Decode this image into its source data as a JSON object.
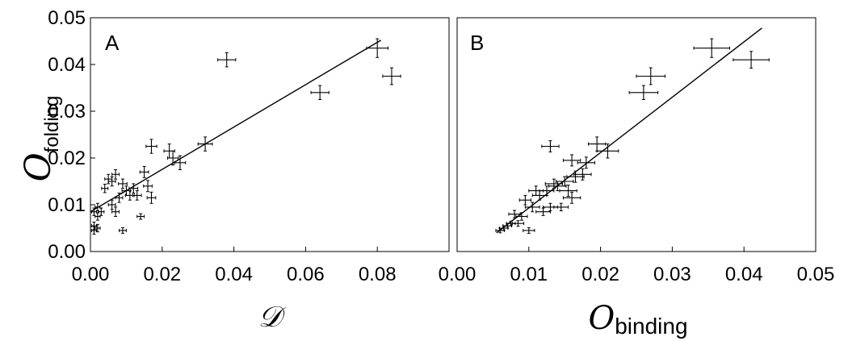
{
  "chart_data": [
    {
      "type": "scatter",
      "panel_label": "A",
      "xlabel": "𝒟",
      "ylabel": {
        "symbol": "O",
        "subscript": "folding"
      },
      "xlim": [
        0,
        0.1
      ],
      "ylim": [
        0,
        0.05
      ],
      "xticks": [
        "0.00",
        "0.02",
        "0.04",
        "0.06",
        "0.08"
      ],
      "yticks": [
        "0.00",
        "0.01",
        "0.02",
        "0.03",
        "0.04",
        "0.05"
      ],
      "fit_line": {
        "x": [
          0.0,
          0.081
        ],
        "y": [
          0.0085,
          0.0452
        ]
      },
      "points": [
        {
          "x": 0.001,
          "y": 0.0045,
          "xerr": 0.0007,
          "yerr": 0.0008
        },
        {
          "x": 0.001,
          "y": 0.0055,
          "xerr": 0.0007,
          "yerr": 0.0008
        },
        {
          "x": 0.002,
          "y": 0.005,
          "xerr": 0.0007,
          "yerr": 0.0008
        },
        {
          "x": 0.002,
          "y": 0.0075,
          "xerr": 0.0007,
          "yerr": 0.0008
        },
        {
          "x": 0.001,
          "y": 0.0085,
          "xerr": 0.0007,
          "yerr": 0.0008
        },
        {
          "x": 0.002,
          "y": 0.0095,
          "xerr": 0.0007,
          "yerr": 0.0008
        },
        {
          "x": 0.003,
          "y": 0.0085,
          "xerr": 0.0008,
          "yerr": 0.0008
        },
        {
          "x": 0.004,
          "y": 0.0135,
          "xerr": 0.0009,
          "yerr": 0.0009
        },
        {
          "x": 0.005,
          "y": 0.0155,
          "xerr": 0.001,
          "yerr": 0.001
        },
        {
          "x": 0.006,
          "y": 0.015,
          "xerr": 0.001,
          "yerr": 0.001
        },
        {
          "x": 0.007,
          "y": 0.0165,
          "xerr": 0.001,
          "yerr": 0.001
        },
        {
          "x": 0.006,
          "y": 0.01,
          "xerr": 0.001,
          "yerr": 0.001
        },
        {
          "x": 0.007,
          "y": 0.0085,
          "xerr": 0.001,
          "yerr": 0.001
        },
        {
          "x": 0.008,
          "y": 0.0115,
          "xerr": 0.001,
          "yerr": 0.001
        },
        {
          "x": 0.009,
          "y": 0.0145,
          "xerr": 0.0012,
          "yerr": 0.001
        },
        {
          "x": 0.01,
          "y": 0.013,
          "xerr": 0.0012,
          "yerr": 0.001
        },
        {
          "x": 0.011,
          "y": 0.012,
          "xerr": 0.0012,
          "yerr": 0.001
        },
        {
          "x": 0.012,
          "y": 0.0135,
          "xerr": 0.0012,
          "yerr": 0.001
        },
        {
          "x": 0.009,
          "y": 0.0045,
          "xerr": 0.001,
          "yerr": 0.0006
        },
        {
          "x": 0.013,
          "y": 0.012,
          "xerr": 0.0012,
          "yerr": 0.001
        },
        {
          "x": 0.014,
          "y": 0.0075,
          "xerr": 0.001,
          "yerr": 0.0006
        },
        {
          "x": 0.015,
          "y": 0.017,
          "xerr": 0.0012,
          "yerr": 0.0012
        },
        {
          "x": 0.016,
          "y": 0.014,
          "xerr": 0.0012,
          "yerr": 0.0012
        },
        {
          "x": 0.017,
          "y": 0.0115,
          "xerr": 0.0012,
          "yerr": 0.0012
        },
        {
          "x": 0.017,
          "y": 0.0225,
          "xerr": 0.0015,
          "yerr": 0.0015
        },
        {
          "x": 0.022,
          "y": 0.0215,
          "xerr": 0.0015,
          "yerr": 0.0015
        },
        {
          "x": 0.023,
          "y": 0.02,
          "xerr": 0.0015,
          "yerr": 0.0015
        },
        {
          "x": 0.025,
          "y": 0.019,
          "xerr": 0.0015,
          "yerr": 0.0015
        },
        {
          "x": 0.032,
          "y": 0.023,
          "xerr": 0.002,
          "yerr": 0.0015
        },
        {
          "x": 0.038,
          "y": 0.041,
          "xerr": 0.0025,
          "yerr": 0.0015
        },
        {
          "x": 0.064,
          "y": 0.034,
          "xerr": 0.0025,
          "yerr": 0.0015
        },
        {
          "x": 0.08,
          "y": 0.0435,
          "xerr": 0.003,
          "yerr": 0.002
        },
        {
          "x": 0.084,
          "y": 0.0375,
          "xerr": 0.0025,
          "yerr": 0.0018
        }
      ]
    },
    {
      "type": "scatter",
      "panel_label": "B",
      "xlabel": {
        "symbol": "O",
        "subscript": "binding"
      },
      "ylabel": "",
      "xlim": [
        0,
        0.05
      ],
      "ylim": [
        0,
        0.05
      ],
      "xticks": [
        "0.00",
        "0.01",
        "0.02",
        "0.03",
        "0.04",
        "0.05"
      ],
      "yticks": [],
      "fit_line": {
        "x": [
          0.0055,
          0.0425
        ],
        "y": [
          0.004,
          0.0478
        ]
      },
      "points": [
        {
          "x": 0.006,
          "y": 0.0045,
          "xerr": 0.0006,
          "yerr": 0.0005
        },
        {
          "x": 0.0065,
          "y": 0.005,
          "xerr": 0.0006,
          "yerr": 0.0005
        },
        {
          "x": 0.007,
          "y": 0.0055,
          "xerr": 0.0006,
          "yerr": 0.0005
        },
        {
          "x": 0.0075,
          "y": 0.006,
          "xerr": 0.0006,
          "yerr": 0.0005
        },
        {
          "x": 0.008,
          "y": 0.008,
          "xerr": 0.0008,
          "yerr": 0.0008
        },
        {
          "x": 0.0085,
          "y": 0.006,
          "xerr": 0.0008,
          "yerr": 0.0006
        },
        {
          "x": 0.009,
          "y": 0.0075,
          "xerr": 0.0008,
          "yerr": 0.0008
        },
        {
          "x": 0.0095,
          "y": 0.011,
          "xerr": 0.0008,
          "yerr": 0.001
        },
        {
          "x": 0.01,
          "y": 0.0045,
          "xerr": 0.0008,
          "yerr": 0.0006
        },
        {
          "x": 0.0105,
          "y": 0.0095,
          "xerr": 0.001,
          "yerr": 0.001
        },
        {
          "x": 0.011,
          "y": 0.013,
          "xerr": 0.001,
          "yerr": 0.001
        },
        {
          "x": 0.0115,
          "y": 0.012,
          "xerr": 0.001,
          "yerr": 0.001
        },
        {
          "x": 0.012,
          "y": 0.0085,
          "xerr": 0.001,
          "yerr": 0.0008
        },
        {
          "x": 0.0125,
          "y": 0.013,
          "xerr": 0.001,
          "yerr": 0.001
        },
        {
          "x": 0.013,
          "y": 0.0095,
          "xerr": 0.001,
          "yerr": 0.0008
        },
        {
          "x": 0.0135,
          "y": 0.0145,
          "xerr": 0.0012,
          "yerr": 0.001
        },
        {
          "x": 0.014,
          "y": 0.014,
          "xerr": 0.0012,
          "yerr": 0.001
        },
        {
          "x": 0.0145,
          "y": 0.0095,
          "xerr": 0.001,
          "yerr": 0.0008
        },
        {
          "x": 0.015,
          "y": 0.015,
          "xerr": 0.0012,
          "yerr": 0.001
        },
        {
          "x": 0.0155,
          "y": 0.013,
          "xerr": 0.0012,
          "yerr": 0.0012
        },
        {
          "x": 0.016,
          "y": 0.0115,
          "xerr": 0.0012,
          "yerr": 0.0012
        },
        {
          "x": 0.013,
          "y": 0.0225,
          "xerr": 0.0012,
          "yerr": 0.0012
        },
        {
          "x": 0.016,
          "y": 0.0195,
          "xerr": 0.0012,
          "yerr": 0.0012
        },
        {
          "x": 0.0165,
          "y": 0.016,
          "xerr": 0.0012,
          "yerr": 0.0012
        },
        {
          "x": 0.0175,
          "y": 0.0165,
          "xerr": 0.0012,
          "yerr": 0.0012
        },
        {
          "x": 0.018,
          "y": 0.019,
          "xerr": 0.0012,
          "yerr": 0.0012
        },
        {
          "x": 0.0195,
          "y": 0.023,
          "xerr": 0.0012,
          "yerr": 0.0015
        },
        {
          "x": 0.021,
          "y": 0.0215,
          "xerr": 0.0015,
          "yerr": 0.0015
        },
        {
          "x": 0.026,
          "y": 0.034,
          "xerr": 0.002,
          "yerr": 0.0015
        },
        {
          "x": 0.027,
          "y": 0.0375,
          "xerr": 0.002,
          "yerr": 0.0018
        },
        {
          "x": 0.0355,
          "y": 0.0435,
          "xerr": 0.0025,
          "yerr": 0.002
        },
        {
          "x": 0.041,
          "y": 0.041,
          "xerr": 0.0025,
          "yerr": 0.0018
        }
      ]
    }
  ]
}
